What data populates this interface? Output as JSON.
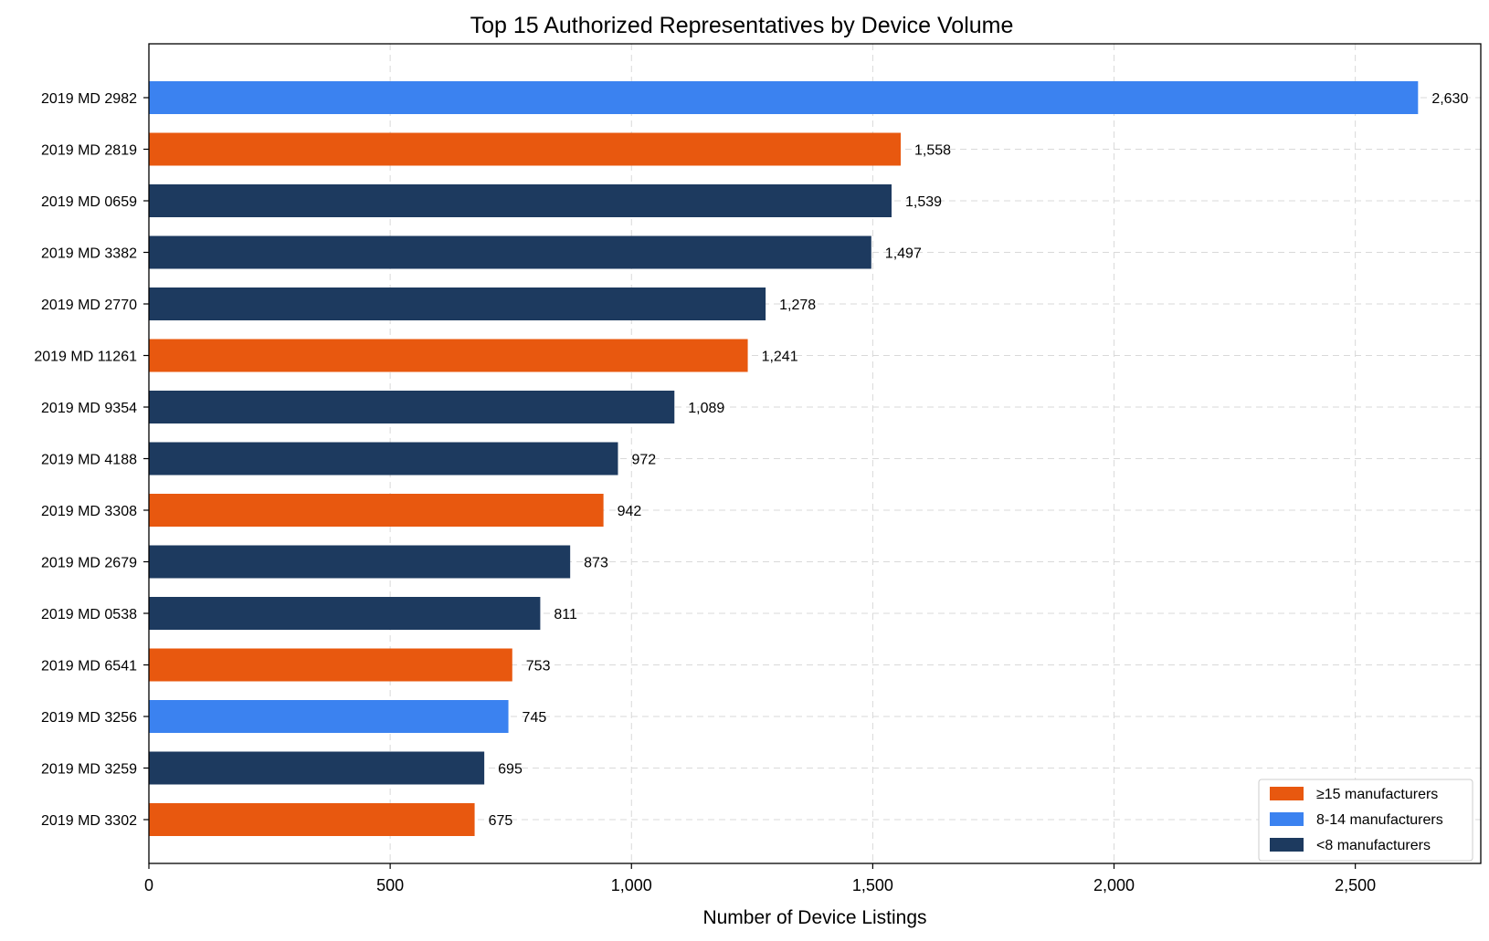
{
  "chart_data": {
    "type": "bar",
    "orientation": "horizontal",
    "title": "Top 15 Authorized Representatives by Device Volume",
    "xlabel": "Number of Device Listings",
    "ylabel": "",
    "xlim": [
      0,
      2760
    ],
    "xticks": [
      0,
      500,
      1000,
      1500,
      2000,
      2500
    ],
    "xtick_labels": [
      "0",
      "500",
      "1,000",
      "1,500",
      "2,000",
      "2,500"
    ],
    "grid": true,
    "legend_position": "bottom-right",
    "groups": [
      {
        "key": "g15",
        "name": "≥15 manufacturers",
        "color": "#E8580F"
      },
      {
        "key": "g8",
        "name": "8-14 manufacturers",
        "color": "#3B82F0"
      },
      {
        "key": "g0",
        "name": "<8 manufacturers",
        "color": "#1D3A5F"
      }
    ],
    "bars": [
      {
        "category": "2019 MD 2982",
        "value": 2630,
        "label": "2,630",
        "group": "g8"
      },
      {
        "category": "2019 MD 2819",
        "value": 1558,
        "label": "1,558",
        "group": "g15"
      },
      {
        "category": "2019 MD 0659",
        "value": 1539,
        "label": "1,539",
        "group": "g0"
      },
      {
        "category": "2019 MD 3382",
        "value": 1497,
        "label": "1,497",
        "group": "g0"
      },
      {
        "category": "2019 MD 2770",
        "value": 1278,
        "label": "1,278",
        "group": "g0"
      },
      {
        "category": "2019 MD 11261",
        "value": 1241,
        "label": "1,241",
        "group": "g15"
      },
      {
        "category": "2019 MD 9354",
        "value": 1089,
        "label": "1,089",
        "group": "g0"
      },
      {
        "category": "2019 MD 4188",
        "value": 972,
        "label": "972",
        "group": "g0"
      },
      {
        "category": "2019 MD 3308",
        "value": 942,
        "label": "942",
        "group": "g15"
      },
      {
        "category": "2019 MD 2679",
        "value": 873,
        "label": "873",
        "group": "g0"
      },
      {
        "category": "2019 MD 0538",
        "value": 811,
        "label": "811",
        "group": "g0"
      },
      {
        "category": "2019 MD 6541",
        "value": 753,
        "label": "753",
        "group": "g15"
      },
      {
        "category": "2019 MD 3256",
        "value": 745,
        "label": "745",
        "group": "g8"
      },
      {
        "category": "2019 MD 3259",
        "value": 695,
        "label": "695",
        "group": "g0"
      },
      {
        "category": "2019 MD 3302",
        "value": 675,
        "label": "675",
        "group": "g15"
      }
    ]
  }
}
